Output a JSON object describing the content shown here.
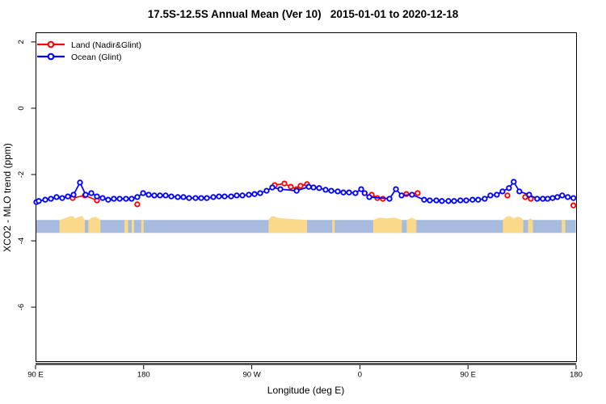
{
  "title": "17.5S-12.5S Annual Mean (Ver 10)   2015-01-01 to 2020-12-18",
  "chart_data": {
    "type": "line",
    "title": "17.5S-12.5S Annual Mean (Ver 10)   2015-01-01 to 2020-12-18",
    "xlabel": "Longitude (deg E)",
    "ylabel": "XCO2 - MLO trend (ppm)",
    "xlim": [
      0,
      450
    ],
    "ylim": [
      -7.63,
      2.29
    ],
    "grid": false,
    "x_ticks": {
      "positions": [
        0,
        90,
        180,
        270,
        360,
        450
      ],
      "labels": [
        "90 E",
        "180",
        "90 W",
        "0",
        "90 E",
        "180"
      ]
    },
    "y_ticks": {
      "positions": [
        2,
        0,
        -2,
        -4,
        -6
      ],
      "labels": [
        "2",
        "0",
        "-2",
        "-4",
        "-6"
      ]
    },
    "legend": {
      "position": "top-left",
      "entries": [
        {
          "label": "Land (Nadir&Glint)",
          "color": "#ff0000"
        },
        {
          "label": "Ocean (Glint)",
          "color": "#0000ff"
        }
      ]
    },
    "series": [
      {
        "name": "Land (Nadir&Glint)",
        "color": "#ff0000",
        "marker": "open-circle",
        "gap_threshold": 12,
        "points": [
          [
            30.9,
            -2.71
          ],
          [
            41,
            -2.63
          ],
          [
            51.1,
            -2.78
          ],
          [
            84.7,
            -2.9
          ],
          [
            199.1,
            -2.32
          ],
          [
            207.2,
            -2.27
          ],
          [
            212.5,
            -2.37
          ],
          [
            217.3,
            -2.44
          ],
          [
            220.6,
            -2.34
          ],
          [
            226,
            -2.29
          ],
          [
            279.8,
            -2.61
          ],
          [
            284.5,
            -2.71
          ],
          [
            289.2,
            -2.73
          ],
          [
            308.7,
            -2.59
          ],
          [
            318.1,
            -2.56
          ],
          [
            392.8,
            -2.63
          ],
          [
            407.6,
            -2.68
          ],
          [
            412.3,
            -2.73
          ],
          [
            447.8,
            -2.93
          ]
        ]
      },
      {
        "name": "Ocean (Glint)",
        "color": "#0000ff",
        "marker": "open-circle",
        "gap_threshold": 999,
        "points": [
          [
            0.7,
            -2.83
          ],
          [
            2.7,
            -2.8
          ],
          [
            8.1,
            -2.76
          ],
          [
            12.8,
            -2.73
          ],
          [
            17.5,
            -2.68
          ],
          [
            22.2,
            -2.71
          ],
          [
            26.9,
            -2.66
          ],
          [
            31.6,
            -2.61
          ],
          [
            37,
            -2.24
          ],
          [
            41.7,
            -2.61
          ],
          [
            46.4,
            -2.56
          ],
          [
            51.1,
            -2.66
          ],
          [
            55.8,
            -2.71
          ],
          [
            60.5,
            -2.76
          ],
          [
            65.2,
            -2.73
          ],
          [
            70,
            -2.73
          ],
          [
            75.3,
            -2.73
          ],
          [
            80,
            -2.73
          ],
          [
            84.7,
            -2.68
          ],
          [
            89.5,
            -2.56
          ],
          [
            94.2,
            -2.61
          ],
          [
            98.9,
            -2.63
          ],
          [
            103.6,
            -2.63
          ],
          [
            108.3,
            -2.63
          ],
          [
            113,
            -2.66
          ],
          [
            118.4,
            -2.68
          ],
          [
            123.1,
            -2.68
          ],
          [
            127.8,
            -2.71
          ],
          [
            133.2,
            -2.71
          ],
          [
            137.9,
            -2.71
          ],
          [
            142.6,
            -2.71
          ],
          [
            148,
            -2.68
          ],
          [
            152.7,
            -2.66
          ],
          [
            157.4,
            -2.66
          ],
          [
            162.8,
            -2.66
          ],
          [
            167.5,
            -2.63
          ],
          [
            172.2,
            -2.63
          ],
          [
            177.6,
            -2.61
          ],
          [
            182.3,
            -2.59
          ],
          [
            187,
            -2.56
          ],
          [
            192.4,
            -2.49
          ],
          [
            197.1,
            -2.39
          ],
          [
            203.8,
            -2.44
          ],
          [
            217.3,
            -2.49
          ],
          [
            227.4,
            -2.37
          ],
          [
            231.4,
            -2.39
          ],
          [
            236.1,
            -2.41
          ],
          [
            241.5,
            -2.46
          ],
          [
            246.2,
            -2.49
          ],
          [
            251.6,
            -2.51
          ],
          [
            256.3,
            -2.54
          ],
          [
            261,
            -2.54
          ],
          [
            266.3,
            -2.56
          ],
          [
            271.1,
            -2.44
          ],
          [
            274,
            -2.56
          ],
          [
            277.8,
            -2.68
          ],
          [
            294.6,
            -2.73
          ],
          [
            300,
            -2.44
          ],
          [
            304.7,
            -2.63
          ],
          [
            313.4,
            -2.61
          ],
          [
            323.5,
            -2.76
          ],
          [
            328.2,
            -2.78
          ],
          [
            333.6,
            -2.78
          ],
          [
            338.3,
            -2.8
          ],
          [
            343.7,
            -2.8
          ],
          [
            348.4,
            -2.8
          ],
          [
            353.7,
            -2.78
          ],
          [
            358.5,
            -2.78
          ],
          [
            363.8,
            -2.76
          ],
          [
            368.5,
            -2.76
          ],
          [
            373.9,
            -2.73
          ],
          [
            378.6,
            -2.63
          ],
          [
            384,
            -2.61
          ],
          [
            388.7,
            -2.51
          ],
          [
            394.1,
            -2.41
          ],
          [
            398.1,
            -2.22
          ],
          [
            402.8,
            -2.51
          ],
          [
            410.9,
            -2.61
          ],
          [
            417.6,
            -2.73
          ],
          [
            422.3,
            -2.73
          ],
          [
            426.3,
            -2.73
          ],
          [
            430.4,
            -2.71
          ],
          [
            434.4,
            -2.68
          ],
          [
            438.4,
            -2.63
          ],
          [
            443.1,
            -2.68
          ],
          [
            447.8,
            -2.71
          ]
        ]
      }
    ],
    "map_band": {
      "ocean_color": "#a6bbdd",
      "land_color": "#fbd98a",
      "y_top": -3.37,
      "y_bottom": -3.76,
      "land_patches": [
        {
          "from": 20,
          "to": 41,
          "peaks": [
            [
              24,
              0.05
            ],
            [
              28,
              0.1
            ],
            [
              31,
              0.12
            ],
            [
              33,
              0.05
            ],
            [
              36,
              0.1
            ],
            [
              39,
              0.12
            ],
            [
              40,
              0.05
            ]
          ]
        },
        {
          "from": 44,
          "to": 54,
          "peaks": [
            [
              47,
              0.07
            ],
            [
              50,
              0.1
            ],
            [
              52,
              0.05
            ]
          ]
        },
        {
          "from": 74,
          "to": 77,
          "peaks": []
        },
        {
          "from": 80,
          "to": 82,
          "peaks": []
        },
        {
          "from": 88,
          "to": 90,
          "peaks": []
        },
        {
          "from": 194,
          "to": 226,
          "peaks": [
            [
              196,
              0.1
            ],
            [
              198,
              0.12
            ],
            [
              201,
              0.07
            ],
            [
              205,
              0.05
            ]
          ]
        },
        {
          "from": 247,
          "to": 249,
          "peaks": []
        },
        {
          "from": 281,
          "to": 305,
          "peaks": [
            [
              286,
              0.07
            ],
            [
              292,
              0.05
            ],
            [
              299,
              0.07
            ]
          ]
        },
        {
          "from": 309,
          "to": 317,
          "peaks": [
            [
              313,
              0.07
            ]
          ]
        },
        {
          "from": 389,
          "to": 406,
          "peaks": [
            [
              392,
              0.1
            ],
            [
              395,
              0.12
            ],
            [
              398,
              0.05
            ],
            [
              401,
              0.1
            ],
            [
              404,
              0.07
            ]
          ]
        },
        {
          "from": 410,
          "to": 414,
          "peaks": [
            [
              412,
              0.05
            ]
          ]
        },
        {
          "from": 438,
          "to": 441,
          "peaks": []
        }
      ]
    },
    "axis_line_color": "#595959"
  }
}
